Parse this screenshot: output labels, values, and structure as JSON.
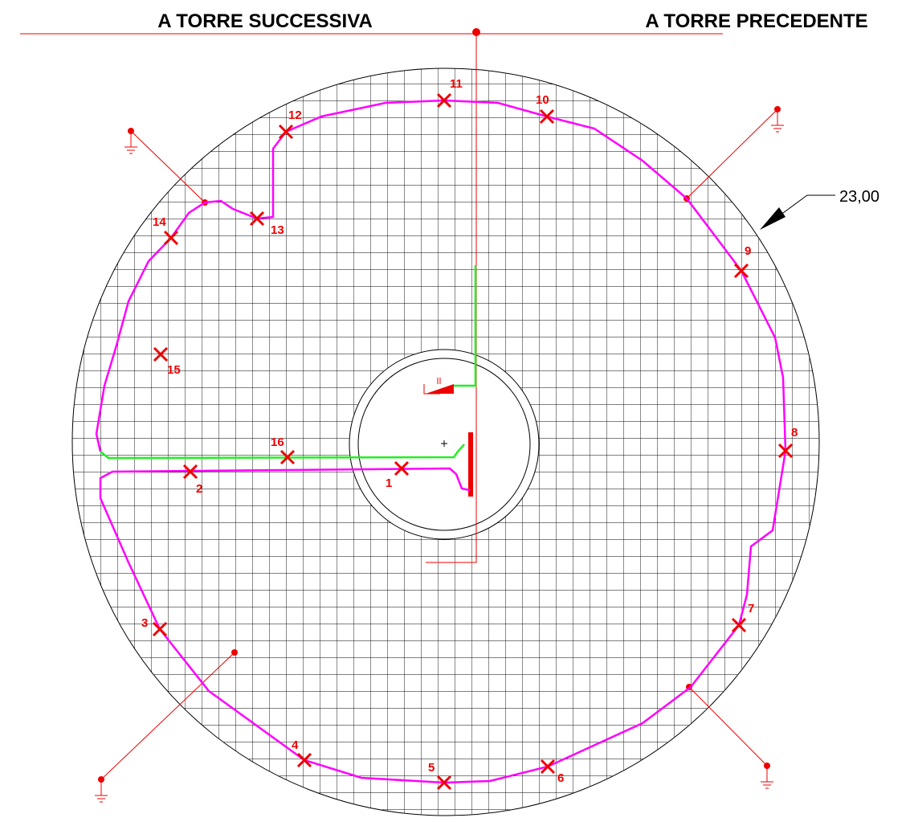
{
  "header": {
    "left": "A TORRE SUCCESSIVA",
    "right": "A TORRE PRECEDENTE"
  },
  "dimension": "23,00",
  "points": [
    {
      "label": "1"
    },
    {
      "label": "2"
    },
    {
      "label": "3"
    },
    {
      "label": "4"
    },
    {
      "label": "5"
    },
    {
      "label": "6"
    },
    {
      "label": "7"
    },
    {
      "label": "8"
    },
    {
      "label": "9"
    },
    {
      "label": "10"
    },
    {
      "label": "11"
    },
    {
      "label": "12"
    },
    {
      "label": "13"
    },
    {
      "label": "14"
    },
    {
      "label": "15"
    },
    {
      "label": "16"
    }
  ]
}
